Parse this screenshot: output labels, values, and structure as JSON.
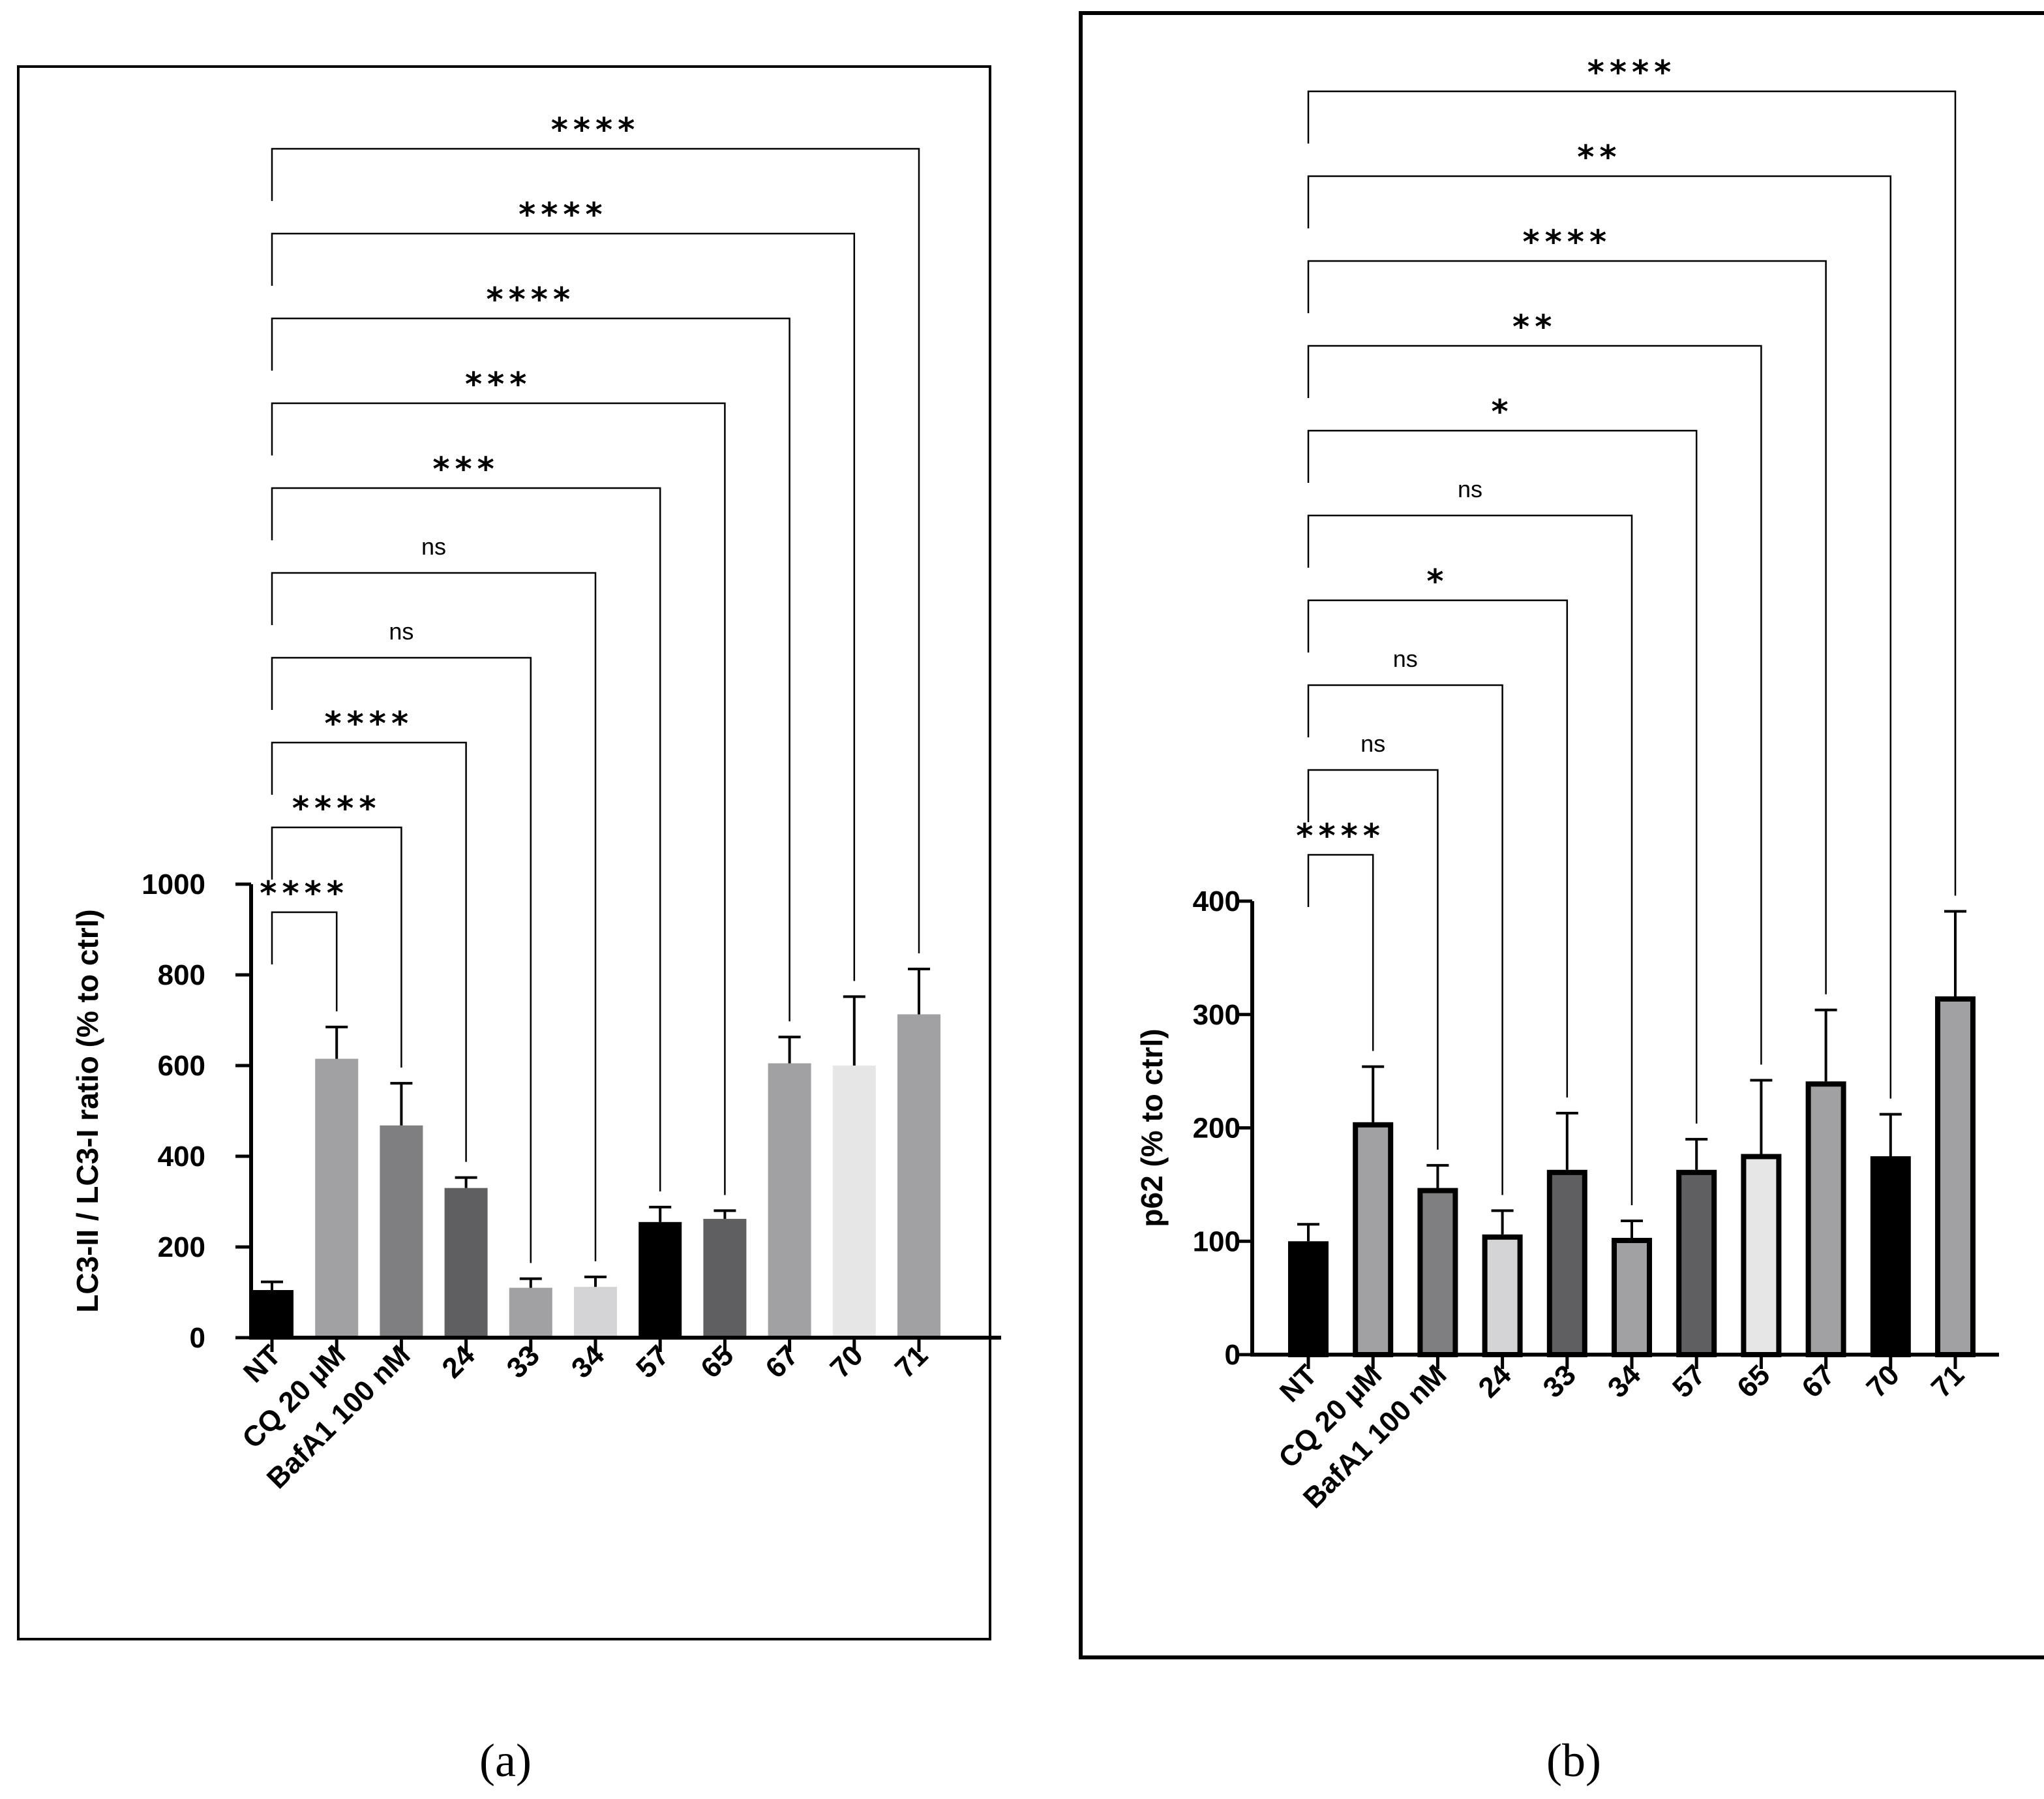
{
  "chart_data": [
    {
      "type": "bar",
      "panel_label": "a",
      "ylabel": "LC3-II / LC3-I ratio (% to ctrl)",
      "ylim": [
        0,
        1000
      ],
      "yticks": [
        "0",
        "200",
        "400",
        "600",
        "800",
        "1000"
      ],
      "categories": [
        "NT",
        "CQ 20 µM",
        "BafA1 100 nM",
        "24",
        "33",
        "34",
        "57",
        "65",
        "67",
        "70",
        "71"
      ],
      "values": [
        105,
        615,
        468,
        330,
        110,
        112,
        255,
        262,
        605,
        600,
        713
      ],
      "errors": [
        18,
        70,
        93,
        23,
        20,
        22,
        33,
        18,
        58,
        152,
        100
      ],
      "colors": [
        "#000000",
        "#a1a1a4",
        "#7f7f81",
        "#5f5f61",
        "#a1a1a4",
        "#d4d4d6",
        "#000000",
        "#5f5f61",
        "#a1a1a4",
        "#e6e6e7",
        "#a1a1a4"
      ],
      "comparisons": [
        "****",
        "****",
        "****",
        "ns",
        "ns",
        "***",
        "***",
        "****",
        "****",
        "****"
      ]
    },
    {
      "type": "bar",
      "panel_label": "b",
      "ylabel": "p62 (% to ctrl)",
      "ylim": [
        0,
        400
      ],
      "yticks": [
        "0",
        "100",
        "200",
        "300",
        "400"
      ],
      "categories": [
        "NT",
        "CQ 20 µM",
        "BafA1 100 nM",
        "24",
        "33",
        "34",
        "57",
        "65",
        "67",
        "70",
        "71"
      ],
      "values": [
        100,
        205,
        147,
        106,
        163,
        103,
        163,
        177,
        241,
        175,
        316
      ],
      "errors": [
        15,
        49,
        20,
        21,
        50,
        15,
        27,
        65,
        63,
        37,
        75
      ],
      "colors": [
        "#000000",
        "#a1a1a4",
        "#7f7f81",
        "#d4d4d6",
        "#5f5f61",
        "#a1a1a4",
        "#5f5f61",
        "#e6e6e7",
        "#a1a1a4",
        "#000000",
        "#a1a1a4"
      ],
      "comparisons": [
        "****",
        "ns",
        "ns",
        "*",
        "ns",
        "*",
        "**",
        "****",
        "**",
        "****"
      ]
    }
  ],
  "captions": {
    "a": "(a)",
    "b": "(b)"
  }
}
